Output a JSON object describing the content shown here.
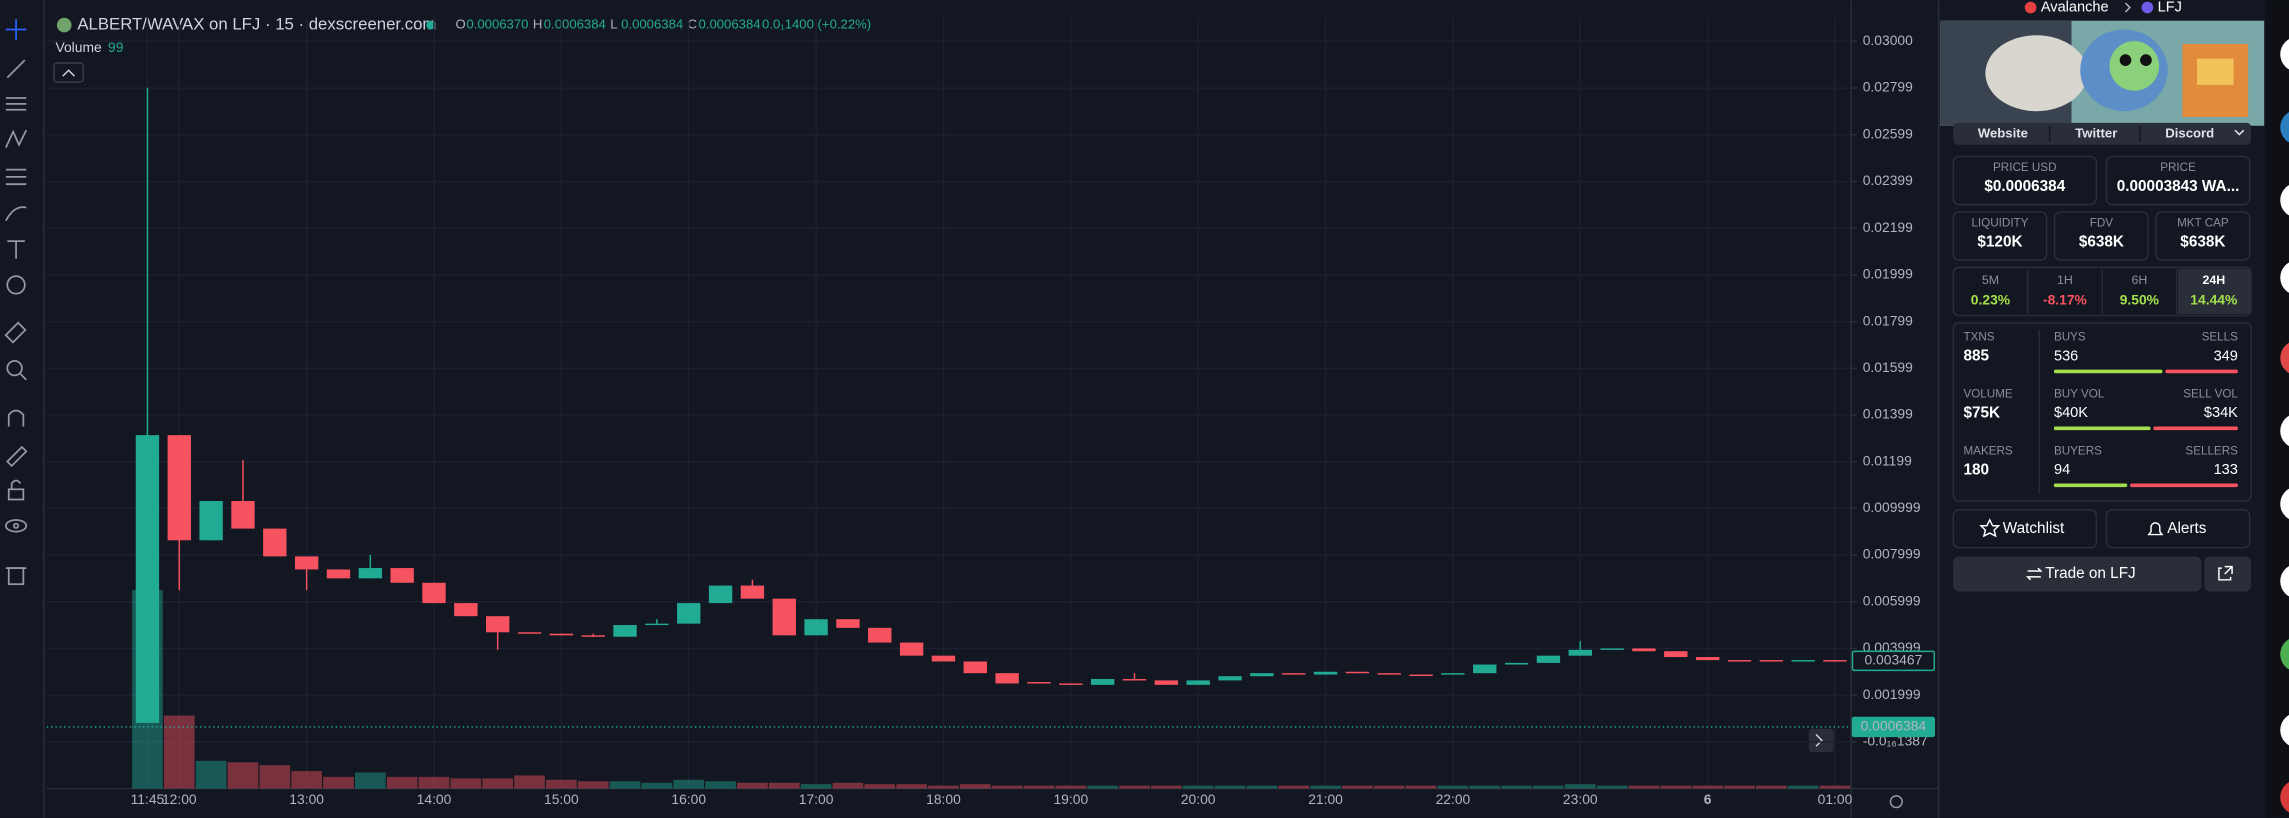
{
  "header": {
    "title": "ALBERT/WAVAX on LFJ · 15 · dexscreener.com",
    "ohlc": [
      {
        "key": "O",
        "value": "0.0006370"
      },
      {
        "key": "H",
        "value": "0.0006384"
      },
      {
        "key": "L",
        "value": "0.0006384"
      },
      {
        "key": "C",
        "value": "0.0006384"
      }
    ],
    "change": "0.0₁1400 (+0.22%)",
    "volume_label": "Volume",
    "volume_value": "99"
  },
  "chart_data": {
    "type": "candlestick",
    "categories": [
      "11:45",
      "12:00",
      null,
      null,
      null,
      "13:00",
      null,
      null,
      null,
      "14:00",
      null,
      null,
      null,
      "15:00",
      null,
      null,
      null,
      "16:00",
      null,
      null,
      null,
      "17:00",
      null,
      null,
      null,
      "18:00",
      null,
      null,
      null,
      "19:00",
      null,
      null,
      null,
      "20:00",
      null,
      null,
      null,
      "21:00",
      null,
      null,
      null,
      "22:00",
      null,
      null,
      null,
      "23:00",
      null,
      null,
      null,
      "6",
      null,
      null,
      null,
      "01:00"
    ],
    "open": [
      0.00081,
      0.01313,
      0.00863,
      0.01031,
      0.00913,
      0.00794,
      0.00738,
      0.007,
      0.00744,
      0.00681,
      0.00594,
      0.00538,
      0.00469,
      0.00463,
      0.00456,
      0.0045,
      0.005,
      0.00506,
      0.00594,
      0.00669,
      0.00613,
      0.00456,
      0.00525,
      0.00488,
      0.00425,
      0.00369,
      0.00344,
      0.00294,
      0.00256,
      0.0025,
      0.00244,
      0.00269,
      0.00263,
      0.00244,
      0.00263,
      0.00281,
      0.00294,
      0.00288,
      0.003,
      0.00294,
      0.00288,
      0.00288,
      0.00294,
      0.00331,
      0.00338,
      0.00369,
      0.00394,
      0.004,
      0.00388,
      0.00363,
      0.0035,
      0.0035,
      0.00347,
      0.0035
    ],
    "high": [
      0.028,
      0.01313,
      0.01031,
      0.01206,
      0.00913,
      0.00794,
      0.00738,
      0.008,
      0.00744,
      0.00681,
      0.00594,
      0.00538,
      0.00469,
      0.00463,
      0.00463,
      0.005,
      0.00525,
      0.00594,
      0.00669,
      0.00694,
      0.00613,
      0.00525,
      0.00525,
      0.00488,
      0.00425,
      0.00369,
      0.00344,
      0.00294,
      0.00256,
      0.0025,
      0.00269,
      0.00294,
      0.00263,
      0.00263,
      0.00281,
      0.00294,
      0.00294,
      0.003,
      0.003,
      0.00294,
      0.00288,
      0.00294,
      0.00331,
      0.00338,
      0.00369,
      0.00431,
      0.004,
      0.004,
      0.00388,
      0.00363,
      0.0035,
      0.0035,
      0.0035,
      0.0035
    ],
    "low": [
      0.00081,
      0.0065,
      0.00863,
      0.00913,
      0.00794,
      0.0065,
      0.007,
      0.007,
      0.00681,
      0.00594,
      0.00538,
      0.00394,
      0.00463,
      0.00456,
      0.0045,
      0.0045,
      0.005,
      0.00506,
      0.00594,
      0.00613,
      0.00456,
      0.00456,
      0.00488,
      0.00425,
      0.00369,
      0.00344,
      0.00294,
      0.0025,
      0.0025,
      0.00244,
      0.00244,
      0.00263,
      0.00244,
      0.00244,
      0.00263,
      0.00281,
      0.00288,
      0.00288,
      0.00294,
      0.00288,
      0.00288,
      0.00288,
      0.00294,
      0.00331,
      0.00338,
      0.00369,
      0.00394,
      0.00388,
      0.00363,
      0.0035,
      0.0035,
      0.00347,
      0.00347,
      0.00347
    ],
    "close": [
      0.01313,
      0.00863,
      0.01031,
      0.00913,
      0.00794,
      0.00738,
      0.007,
      0.00744,
      0.00681,
      0.00594,
      0.00538,
      0.00469,
      0.00463,
      0.00456,
      0.0045,
      0.005,
      0.00506,
      0.00594,
      0.00669,
      0.00613,
      0.00456,
      0.00525,
      0.00488,
      0.00425,
      0.00369,
      0.00344,
      0.00294,
      0.0025,
      0.0025,
      0.00244,
      0.00269,
      0.00263,
      0.00244,
      0.00263,
      0.00281,
      0.00294,
      0.00288,
      0.003,
      0.00294,
      0.00288,
      0.00288,
      0.00294,
      0.00331,
      0.00338,
      0.00369,
      0.00394,
      0.004,
      0.00388,
      0.00363,
      0.0035,
      0.0035,
      0.00347,
      0.0035,
      0.003467
    ],
    "volume": [
      27200,
      10000,
      3800,
      3600,
      3200,
      2400,
      1600,
      2200,
      1600,
      1600,
      1400,
      1400,
      1800,
      1200,
      1000,
      1000,
      800,
      1200,
      1000,
      800,
      800,
      600,
      800,
      600,
      600,
      400,
      600,
      400,
      400,
      400,
      400,
      400,
      400,
      400,
      400,
      400,
      400,
      400,
      400,
      400,
      400,
      400,
      400,
      400,
      400,
      600,
      400,
      400,
      400,
      400,
      400,
      400,
      400,
      400
    ],
    "volume_lim": [
      0,
      32000
    ],
    "up_color": "#22ab94",
    "down_color": "#f7525f",
    "ylim": [
      -0.002,
      0.031
    ],
    "yticks": [
      {
        "value": 0.03,
        "label": "0.03000"
      },
      0.02799,
      0.02599,
      0.02399,
      0.02199,
      0.01999,
      0.01799,
      0.01599,
      0.01399,
      0.01199,
      0.009999,
      0.007999,
      0.005999,
      0.003999,
      0.001999,
      {
        "value": -1.387e-17,
        "label": "-0.0₁₆1387"
      }
    ],
    "grid": true,
    "price_tags": [
      0.003467,
      0.0006384
    ]
  },
  "panel": {
    "breadcrumb": [
      "Avalanche",
      "LFJ"
    ],
    "links": [
      "Website",
      "Twitter",
      "Discord"
    ],
    "prices": [
      {
        "label": "PRICE USD",
        "value": "$0.0006384"
      },
      {
        "label": "PRICE",
        "value": "0.00003843 WA..."
      }
    ],
    "metrics": [
      {
        "label": "LIQUIDITY",
        "value": "$120K"
      },
      {
        "label": "FDV",
        "value": "$638K"
      },
      {
        "label": "MKT CAP",
        "value": "$638K"
      }
    ],
    "changes": [
      {
        "label": "5M",
        "value": "0.23%"
      },
      {
        "label": "1H",
        "value": "-8.17%"
      },
      {
        "label": "6H",
        "value": "9.50%"
      },
      {
        "label": "24H",
        "value": "14.44%"
      }
    ],
    "stats": [
      {
        "label": "TXNS",
        "value": "885",
        "left_label": "BUYS",
        "left": "536",
        "right_label": "SELLS",
        "right": "349"
      },
      {
        "label": "VOLUME",
        "value": "$75K",
        "left_label": "BUY VOL",
        "left": "$40K",
        "right_label": "SELL VOL",
        "right": "$34K"
      },
      {
        "label": "MAKERS",
        "value": "180",
        "left_label": "BUYERS",
        "left": "94",
        "right_label": "SELLERS",
        "right": "133"
      }
    ],
    "buttons": [
      "Watchlist",
      "Alerts",
      "Trade on LFJ"
    ]
  }
}
